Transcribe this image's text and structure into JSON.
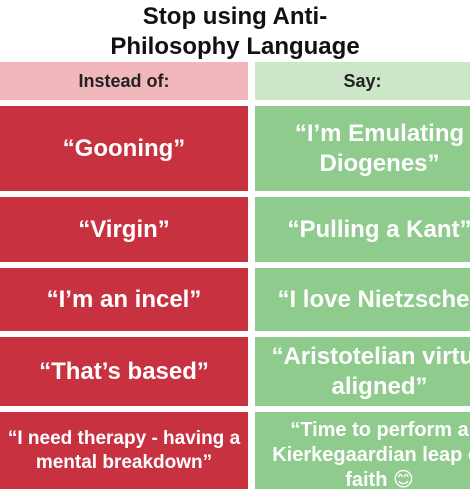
{
  "title": "Stop using Anti-Philosophy Language",
  "table": {
    "headers": [
      "Instead of:",
      "Say:"
    ],
    "rows": [
      [
        "“Gooning”",
        "“I’m Emulating Diogenes”"
      ],
      [
        "“Virgin”",
        "“Pulling a Kant”"
      ],
      [
        "“I’m an incel”",
        "“I love Nietzsche”"
      ],
      [
        "“That’s based”",
        "“Aristotelian virtue aligned”"
      ],
      [
        "“I need therapy - having a mental breakdown”",
        "“Time to perform a Kierkegaardian leap of faith 😊"
      ]
    ]
  }
}
